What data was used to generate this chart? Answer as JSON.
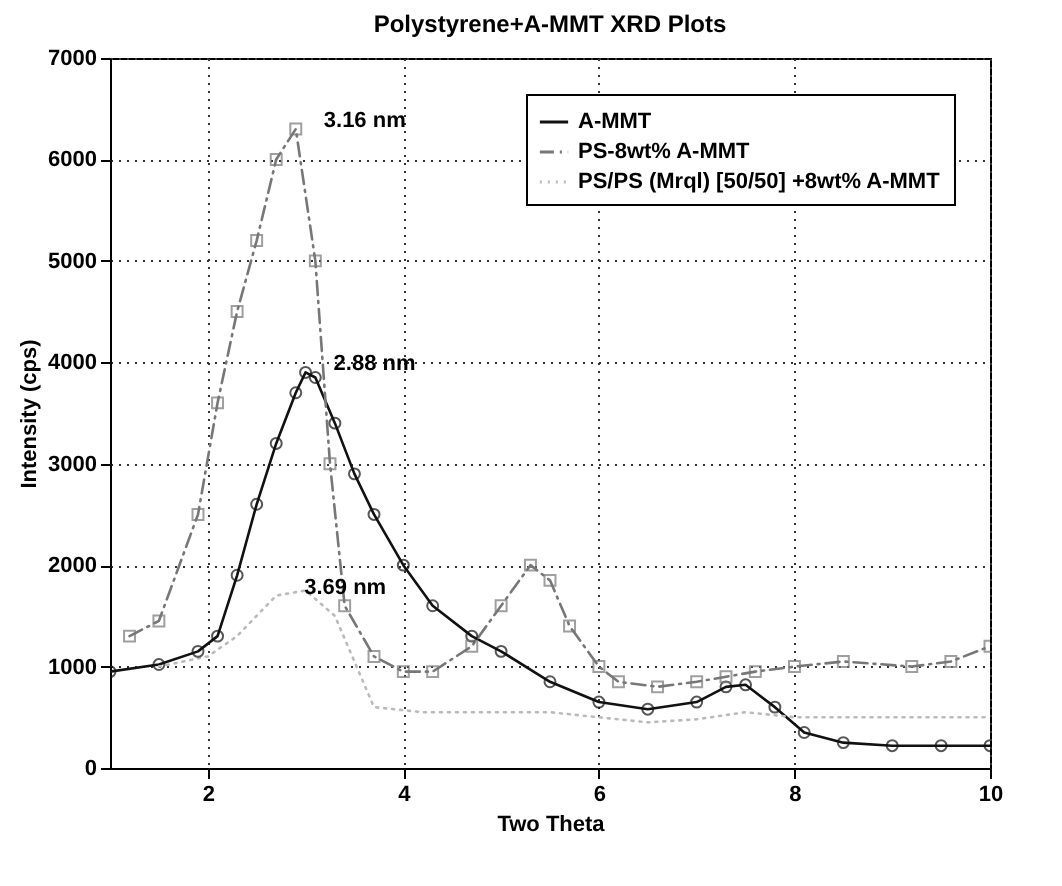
{
  "chart_data": {
    "type": "line",
    "title": "Polystyrene+A-MMT XRD Plots",
    "xlabel": "Two Theta",
    "ylabel": "Intensity (cps)",
    "xlim": [
      1,
      10
    ],
    "ylim": [
      0,
      7000
    ],
    "xticks": [
      2,
      4,
      6,
      8,
      10
    ],
    "yticks": [
      0,
      1000,
      2000,
      3000,
      4000,
      5000,
      6000,
      7000
    ],
    "grid": true,
    "legend": "top right",
    "series": [
      {
        "name": "A-MMT",
        "color": "#111111",
        "line_style": "solid",
        "marker": "circle",
        "x": [
          1.0,
          1.5,
          1.9,
          2.1,
          2.3,
          2.5,
          2.7,
          2.9,
          3.0,
          3.1,
          3.3,
          3.5,
          3.7,
          4.0,
          4.3,
          4.7,
          5.0,
          5.5,
          6.0,
          6.5,
          7.0,
          7.3,
          7.5,
          7.8,
          8.1,
          8.5,
          9.0,
          9.5,
          10.0
        ],
        "values": [
          950,
          1020,
          1150,
          1300,
          1900,
          2600,
          3200,
          3700,
          3900,
          3850,
          3400,
          2900,
          2500,
          2000,
          1600,
          1300,
          1150,
          850,
          650,
          580,
          650,
          800,
          820,
          600,
          350,
          250,
          220,
          220,
          220
        ]
      },
      {
        "name": "PS-8wt% A-MMT",
        "color": "#777777",
        "line_style": "dashdot",
        "marker": "square",
        "x": [
          1.2,
          1.5,
          1.9,
          2.1,
          2.3,
          2.5,
          2.7,
          2.9,
          3.1,
          3.25,
          3.4,
          3.7,
          4.0,
          4.3,
          4.7,
          5.0,
          5.3,
          5.5,
          5.7,
          6.0,
          6.2,
          6.6,
          7.0,
          7.3,
          7.6,
          8.0,
          8.5,
          9.2,
          9.6,
          10.0
        ],
        "values": [
          1300,
          1450,
          2500,
          3600,
          4500,
          5200,
          6000,
          6300,
          5000,
          3000,
          1600,
          1100,
          950,
          950,
          1200,
          1600,
          2000,
          1850,
          1400,
          1000,
          850,
          800,
          850,
          900,
          950,
          1000,
          1050,
          1000,
          1050,
          1200
        ]
      },
      {
        "name": "PS/PS (Mrql) [50/50] +8wt% A-MMT",
        "color": "#bbbbbb",
        "line_style": "dotted",
        "marker": "none",
        "x": [
          1.5,
          2.0,
          2.3,
          2.7,
          3.0,
          3.3,
          3.7,
          4.2,
          5.0,
          5.5,
          6.0,
          6.5,
          7.0,
          7.5,
          8.0,
          9.0,
          10.0
        ],
        "values": [
          1000,
          1100,
          1300,
          1700,
          1750,
          1500,
          600,
          550,
          550,
          550,
          500,
          450,
          480,
          550,
          500,
          500,
          500
        ]
      }
    ],
    "annotations": [
      {
        "text": "3.16 nm",
        "x": 2.9,
        "y": 6300
      },
      {
        "text": "2.88 nm",
        "x": 3.0,
        "y": 3900
      },
      {
        "text": "3.69 nm",
        "x": 2.7,
        "y": 1700
      }
    ]
  }
}
